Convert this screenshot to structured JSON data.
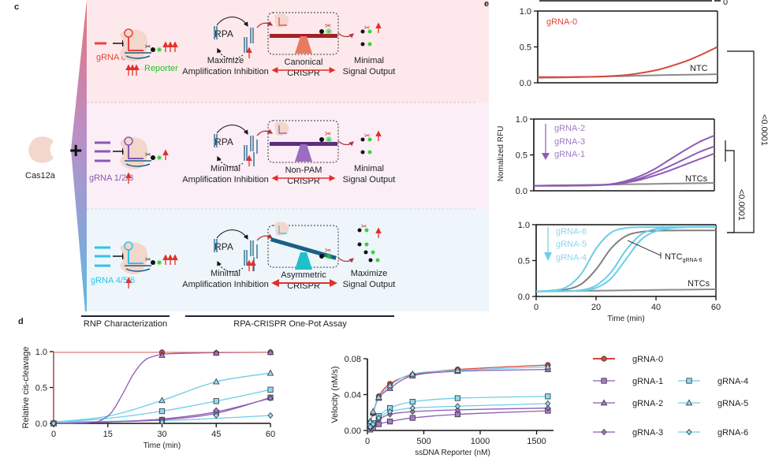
{
  "panel_c": {
    "label": "c",
    "cas12a": "Cas12a",
    "plus": "+",
    "rows": [
      {
        "grna": "gRNA 0",
        "reporter": "Reporter",
        "rpa": "RPA",
        "left": [
          "Maximize",
          "Amplification Inhibition"
        ],
        "middle": [
          "Canonical",
          "CRISPR"
        ],
        "right": [
          "Minimal",
          "Signal Output"
        ],
        "color": "#e8423a",
        "fulcrum": "#e87a62",
        "beam": "#a62027"
      },
      {
        "grna": "gRNA 1/2/3",
        "rpa": "RPA",
        "left": [
          "Minimal",
          "Amplification Inhibition"
        ],
        "middle": [
          "Non-PAM",
          "CRISPR"
        ],
        "right": [
          "Minimal",
          "Signal Output"
        ],
        "color": "#8b58b4",
        "fulcrum": "#9d6cc4",
        "beam": "#5c2f80"
      },
      {
        "grna": "gRNA 4/5/6",
        "rpa": "RPA",
        "left": [
          "Minimal",
          "Amplification Inhibition"
        ],
        "middle": [
          "Asymmetric",
          "CRISPR"
        ],
        "right": [
          "Maximize",
          "Signal Output"
        ],
        "color": "#2ec4e8",
        "fulcrum": "#1fc0cc",
        "beam": "#1b5f86"
      }
    ],
    "bars": [
      "RNP Characterization",
      "RPA-CRISPR One-Pot Assay"
    ]
  },
  "panel_d": {
    "label": "d"
  },
  "panel_e": {
    "label": "e",
    "top_fragment_tick": "0",
    "ylabel": "Nomalized RFU",
    "xlabel": "Time (min)",
    "p_values": [
      "<0.0001",
      "<0.0001"
    ],
    "annotations": {
      "sub1": [
        "gRNA-0",
        "NTC"
      ],
      "sub2": [
        "gRNA-2",
        "gRNA-3",
        "gRNA-1",
        "NTCs"
      ],
      "sub3": [
        "gRNA-6",
        "gRNA-5",
        "gRNA-4",
        "NTCs"
      ],
      "ntc_grna6": {
        "main": "NTC",
        "sub": "gRNA-6"
      }
    }
  },
  "colors": {
    "red": "#d9473b",
    "purple": "#8e5bb5",
    "blue": "#6dcdea",
    "gray": "#8a8a8a"
  },
  "chart_data": [
    {
      "id": "d-cis-cleavage",
      "type": "line",
      "xlabel": "Time (min)",
      "ylabel": "Relative cis-cleavage",
      "xlim": [
        0,
        60
      ],
      "ylim": [
        0,
        1.0
      ],
      "xticks": [
        0,
        15,
        30,
        45,
        60
      ],
      "yticks": [
        0.0,
        0.5,
        1.0
      ],
      "series": [
        {
          "name": "gRNA-0",
          "color": "#d9473b",
          "marker": "circle",
          "points": [
            [
              0,
              0
            ],
            [
              30,
              0.99
            ],
            [
              45,
              0.98
            ],
            [
              60,
              0.99
            ]
          ],
          "curve": [
            [
              0,
              0
            ],
            [
              0,
              0.99
            ],
            [
              60,
              0.99
            ]
          ]
        },
        {
          "name": "gRNA-2",
          "color": "#8e5bb5",
          "marker": "triangle",
          "points": [
            [
              0,
              0
            ],
            [
              30,
              0.95
            ],
            [
              45,
              0.98
            ],
            [
              60,
              0.99
            ]
          ],
          "curve": [
            [
              0,
              0
            ],
            [
              10,
              0.01
            ],
            [
              13,
              0.04
            ],
            [
              16,
              0.15
            ],
            [
              19,
              0.4
            ],
            [
              22,
              0.68
            ],
            [
              25,
              0.87
            ],
            [
              28,
              0.94
            ],
            [
              32,
              0.97
            ],
            [
              45,
              0.985
            ],
            [
              60,
              0.99
            ]
          ]
        },
        {
          "name": "gRNA-5",
          "color": "#6dcdea",
          "marker": "triangle",
          "points": [
            [
              0,
              0
            ],
            [
              30,
              0.32
            ],
            [
              45,
              0.58
            ],
            [
              60,
              0.7
            ]
          ],
          "curve": [
            [
              0,
              0.02
            ],
            [
              15,
              0.1
            ],
            [
              30,
              0.32
            ],
            [
              45,
              0.58
            ],
            [
              60,
              0.7
            ]
          ]
        },
        {
          "name": "gRNA-4",
          "color": "#6dcdea",
          "marker": "square",
          "points": [
            [
              0,
              0
            ],
            [
              30,
              0.17
            ],
            [
              45,
              0.31
            ],
            [
              60,
              0.47
            ]
          ],
          "curve": [
            [
              0,
              0.02
            ],
            [
              15,
              0.07
            ],
            [
              30,
              0.17
            ],
            [
              45,
              0.31
            ],
            [
              60,
              0.47
            ]
          ]
        },
        {
          "name": "gRNA-1",
          "color": "#8e5bb5",
          "marker": "square",
          "points": [
            [
              0,
              0
            ],
            [
              30,
              0.05
            ],
            [
              45,
              0.15
            ],
            [
              60,
              0.36
            ]
          ],
          "curve": [
            [
              0,
              0
            ],
            [
              15,
              0.02
            ],
            [
              30,
              0.05
            ],
            [
              45,
              0.14
            ],
            [
              60,
              0.36
            ]
          ]
        },
        {
          "name": "gRNA-3",
          "color": "#8e5bb5",
          "marker": "diamond",
          "points": [
            [
              0,
              0
            ],
            [
              30,
              0.05
            ],
            [
              45,
              0.18
            ],
            [
              60,
              0.35
            ]
          ],
          "curve": [
            [
              0,
              0
            ],
            [
              15,
              0.02
            ],
            [
              30,
              0.06
            ],
            [
              45,
              0.16
            ],
            [
              60,
              0.35
            ]
          ]
        },
        {
          "name": "gRNA-6",
          "color": "#6dcdea",
          "marker": "diamond",
          "points": [
            [
              0,
              0
            ],
            [
              30,
              0.02
            ],
            [
              45,
              0.11
            ],
            [
              60,
              0.11
            ]
          ],
          "curve": [
            [
              0,
              0.02
            ],
            [
              30,
              0.04
            ],
            [
              45,
              0.07
            ],
            [
              60,
              0.11
            ]
          ]
        }
      ]
    },
    {
      "id": "d-kinetics",
      "type": "scatter",
      "xlabel": "ssDNA Reporter (nM)",
      "ylabel": "Velocity (nM/s)",
      "xlim": [
        0,
        1650
      ],
      "ylim": [
        0,
        0.08
      ],
      "xticks": [
        0,
        500,
        1000,
        1500
      ],
      "yticks": [
        0.0,
        0.04,
        0.08
      ],
      "legend": "right",
      "series": [
        {
          "name": "gRNA-0",
          "color": "#d9473b",
          "marker": "circle",
          "points": [
            [
              25,
              0.009
            ],
            [
              50,
              0.019
            ],
            [
              100,
              0.038
            ],
            [
              200,
              0.052
            ],
            [
              400,
              0.062
            ],
            [
              800,
              0.068
            ],
            [
              1600,
              0.073
            ]
          ]
        },
        {
          "name": "gRNA-1",
          "color": "#8e5bb5",
          "marker": "square",
          "points": [
            [
              25,
              0.001
            ],
            [
              50,
              0.003
            ],
            [
              100,
              0.007
            ],
            [
              200,
              0.01
            ],
            [
              400,
              0.014
            ],
            [
              800,
              0.018
            ],
            [
              1600,
              0.022
            ]
          ]
        },
        {
          "name": "gRNA-2",
          "color": "#8e5bb5",
          "marker": "triangle",
          "points": [
            [
              25,
              0.01
            ],
            [
              50,
              0.02
            ],
            [
              100,
              0.036
            ],
            [
              200,
              0.047
            ],
            [
              400,
              0.061
            ],
            [
              800,
              0.066
            ],
            [
              1600,
              0.068
            ]
          ]
        },
        {
          "name": "gRNA-3",
          "color": "#8e5bb5",
          "marker": "diamond",
          "points": [
            [
              25,
              0.003
            ],
            [
              50,
              0.006
            ],
            [
              100,
              0.012
            ],
            [
              200,
              0.018
            ],
            [
              400,
              0.021
            ],
            [
              800,
              0.023
            ],
            [
              1600,
              0.025
            ]
          ]
        },
        {
          "name": "gRNA-4",
          "color": "#6dcdea",
          "marker": "square",
          "points": [
            [
              25,
              0.005
            ],
            [
              50,
              0.008
            ],
            [
              100,
              0.016
            ],
            [
              200,
              0.025
            ],
            [
              400,
              0.032
            ],
            [
              800,
              0.036
            ],
            [
              1600,
              0.038
            ]
          ]
        },
        {
          "name": "gRNA-5",
          "color": "#6dcdea",
          "marker": "triangle",
          "points": [
            [
              25,
              0.01
            ],
            [
              50,
              0.021
            ],
            [
              100,
              0.037
            ],
            [
              200,
              0.05
            ],
            [
              400,
              0.063
            ],
            [
              800,
              0.067
            ],
            [
              1600,
              0.071
            ]
          ]
        },
        {
          "name": "gRNA-6",
          "color": "#6dcdea",
          "marker": "diamond",
          "points": [
            [
              25,
              0.004
            ],
            [
              50,
              0.007
            ],
            [
              100,
              0.014
            ],
            [
              200,
              0.021
            ],
            [
              400,
              0.025
            ],
            [
              800,
              0.027
            ],
            [
              1600,
              0.03
            ]
          ]
        }
      ]
    },
    {
      "id": "e-gRNA-0",
      "type": "line",
      "xlim": [
        0,
        60
      ],
      "ylim": [
        0,
        1.0
      ],
      "yticks": [
        0.0,
        0.5,
        1.0
      ],
      "x": [
        0,
        5,
        10,
        15,
        20,
        25,
        30,
        35,
        40,
        45,
        50,
        55,
        60
      ],
      "series": [
        {
          "name": "NTC",
          "color": "#8a8a8a",
          "values": [
            0.07,
            0.072,
            0.075,
            0.08,
            0.085,
            0.09,
            0.095,
            0.1,
            0.105,
            0.11,
            0.112,
            0.115,
            0.12
          ]
        },
        {
          "name": "gRNA-0",
          "color": "#d9473b",
          "values": [
            0.08,
            0.08,
            0.08,
            0.082,
            0.085,
            0.095,
            0.11,
            0.14,
            0.18,
            0.24,
            0.31,
            0.4,
            0.5
          ]
        }
      ]
    },
    {
      "id": "e-gRNA-1-2-3",
      "type": "line",
      "xlim": [
        0,
        60
      ],
      "ylim": [
        0,
        1.0
      ],
      "yticks": [
        0.0,
        0.5,
        1.0
      ],
      "x": [
        0,
        5,
        10,
        15,
        20,
        25,
        30,
        35,
        40,
        45,
        50,
        55,
        60
      ],
      "series": [
        {
          "name": "NTCs",
          "color": "#8a8a8a",
          "values": [
            0.07,
            0.075,
            0.078,
            0.08,
            0.083,
            0.086,
            0.09,
            0.093,
            0.096,
            0.1,
            0.103,
            0.106,
            0.11
          ]
        },
        {
          "name": "gRNA-2",
          "color": "#8e5bb5",
          "values": [
            0.07,
            0.07,
            0.07,
            0.075,
            0.08,
            0.09,
            0.13,
            0.2,
            0.3,
            0.43,
            0.56,
            0.68,
            0.77
          ]
        },
        {
          "name": "gRNA-3",
          "color": "#8e5bb5",
          "values": [
            0.07,
            0.07,
            0.07,
            0.073,
            0.078,
            0.088,
            0.12,
            0.17,
            0.25,
            0.34,
            0.44,
            0.54,
            0.62
          ]
        },
        {
          "name": "gRNA-1",
          "color": "#8e5bb5",
          "values": [
            0.07,
            0.07,
            0.07,
            0.072,
            0.076,
            0.085,
            0.11,
            0.15,
            0.21,
            0.28,
            0.36,
            0.44,
            0.52
          ]
        }
      ]
    },
    {
      "id": "e-gRNA-4-5-6",
      "type": "line",
      "xlim": [
        0,
        60
      ],
      "ylim": [
        0,
        1.0
      ],
      "yticks": [
        0.0,
        0.5,
        1.0
      ],
      "xticks": [
        0,
        20,
        40,
        60
      ],
      "xlabel": "Time (min)",
      "x": [
        0,
        5,
        10,
        15,
        20,
        25,
        30,
        35,
        40,
        45,
        50,
        55,
        60
      ],
      "series": [
        {
          "name": "NTCs",
          "color": "#8a8a8a",
          "values": [
            0.07,
            0.072,
            0.075,
            0.078,
            0.08,
            0.083,
            0.085,
            0.088,
            0.09,
            0.093,
            0.095,
            0.098,
            0.1
          ]
        },
        {
          "name": "NTC gRNA-6",
          "color": "#808080",
          "values": [
            0.07,
            0.077,
            0.097,
            0.171,
            0.377,
            0.669,
            0.843,
            0.9,
            0.915,
            0.919,
            0.92,
            0.92,
            0.92
          ]
        },
        {
          "name": "gRNA-6",
          "color": "#6dcdea",
          "values": [
            0.07,
            0.082,
            0.128,
            0.312,
            0.666,
            0.89,
            0.954,
            0.965,
            0.969,
            0.97,
            0.97,
            0.97,
            0.97
          ]
        },
        {
          "name": "gRNA-5",
          "color": "#6dcdea",
          "values": [
            0.07,
            0.07,
            0.075,
            0.088,
            0.153,
            0.338,
            0.645,
            0.863,
            0.942,
            0.96,
            0.965,
            0.97,
            0.97
          ]
        },
        {
          "name": "gRNA-4",
          "color": "#6dcdea",
          "values": [
            0.07,
            0.07,
            0.073,
            0.083,
            0.12,
            0.25,
            0.52,
            0.79,
            0.91,
            0.95,
            0.965,
            0.97,
            0.97
          ]
        }
      ]
    }
  ]
}
